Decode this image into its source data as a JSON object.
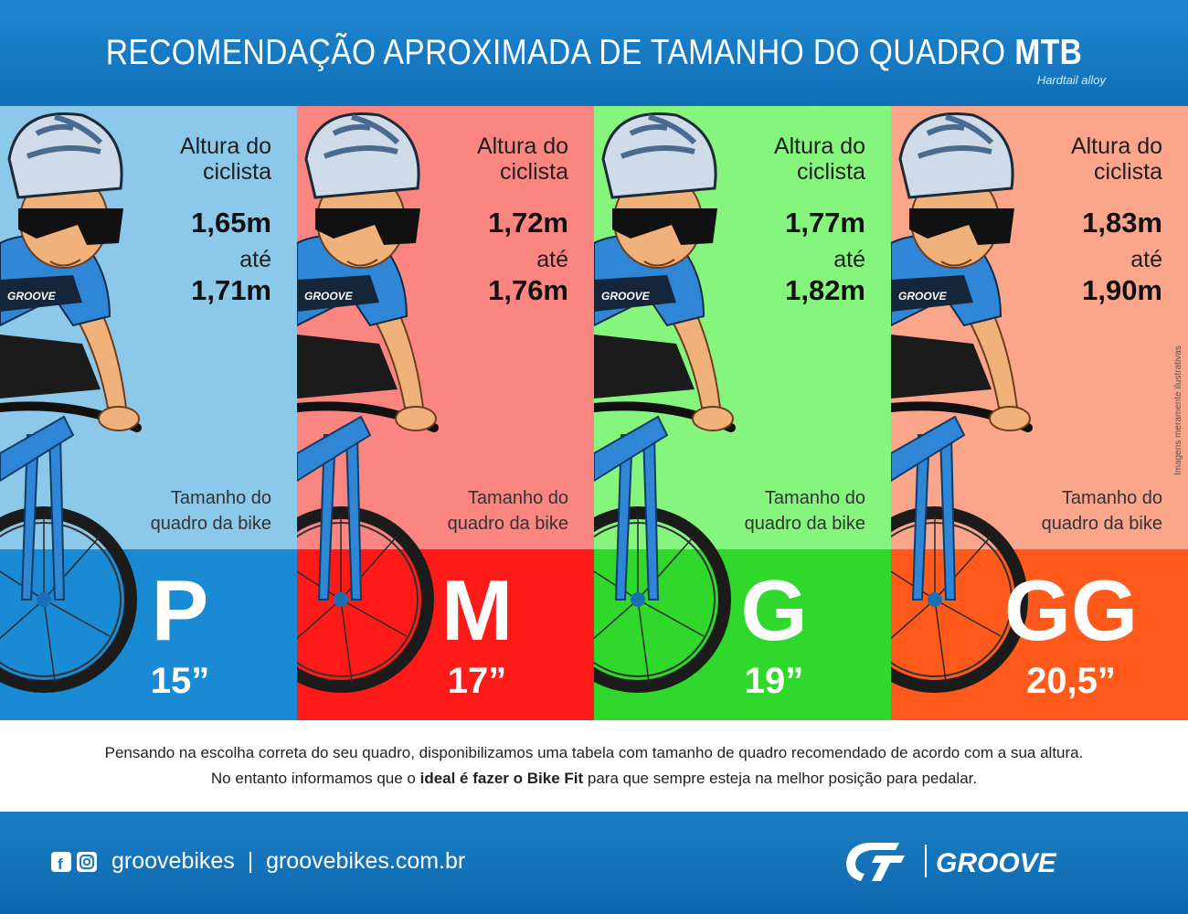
{
  "header": {
    "title_main": "RECOMENDAÇÃO APROXIMADA DE TAMANHO DO QUADRO",
    "title_bold": "MTB",
    "subtitle": "Hardtail alloy"
  },
  "labels": {
    "altura_line1": "Altura do",
    "altura_line2": "ciclista",
    "ate": "até",
    "quadro_line1": "Tamanho do",
    "quadro_line2": "quadro da bike",
    "side_note": "Imagens meramente ilustrativas"
  },
  "sizes": [
    {
      "min": "1,65m",
      "max": "1,71m",
      "letter": "P",
      "inches": "15”",
      "upper_color": "#8cc8ea",
      "lower_color": "#1a8ad4"
    },
    {
      "min": "1,72m",
      "max": "1,76m",
      "letter": "M",
      "inches": "17”",
      "upper_color": "#fb8580",
      "lower_color": "#ff1a17"
    },
    {
      "min": "1,77m",
      "max": "1,82m",
      "letter": "G",
      "inches": "19”",
      "upper_color": "#86f57e",
      "lower_color": "#2fd82a"
    },
    {
      "min": "1,83m",
      "max": "1,90m",
      "letter": "GG",
      "inches": "20,5”",
      "upper_color": "#fba58a",
      "lower_color": "#ff5a1c"
    }
  ],
  "info": {
    "line1": "Pensando na escolha correta do seu quadro, disponibilizamos uma tabela com tamanho de quadro recomendado de acordo com a sua altura.",
    "line2_a": "No entanto informamos que o ",
    "line2_b": "ideal é fazer o Bike Fit",
    "line2_c": " para que sempre esteja na melhor posição para pedalar."
  },
  "footer": {
    "handle": "groovebikes  |  groovebikes.com.br",
    "brand_name": "GROOVE",
    "icons": [
      "facebook-icon",
      "instagram-icon"
    ]
  },
  "colors": {
    "header_blue": "#1478c2",
    "footer_blue": "#1478c2",
    "jersey_blue": "#2f86d6"
  }
}
